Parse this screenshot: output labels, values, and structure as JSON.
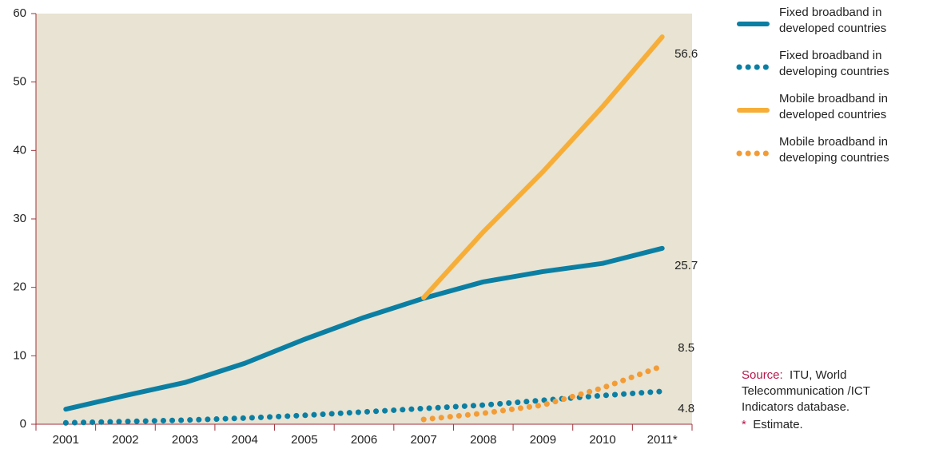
{
  "chart_data": {
    "type": "line",
    "categories": [
      "2001",
      "2002",
      "2003",
      "2004",
      "2005",
      "2006",
      "2007",
      "2008",
      "2009",
      "2010",
      "2011*"
    ],
    "series": [
      {
        "name": "Fixed broadband in developed countries",
        "color": "#0b7fa3",
        "dash": "solid",
        "values": [
          2.2,
          4.2,
          6.1,
          8.9,
          12.4,
          15.6,
          18.4,
          20.8,
          22.3,
          23.5,
          25.7
        ]
      },
      {
        "name": "Fixed broadband in developing countries",
        "color": "#0b7fa3",
        "dash": "dotted",
        "values": [
          0.2,
          0.4,
          0.6,
          0.9,
          1.3,
          1.8,
          2.3,
          2.8,
          3.5,
          4.2,
          4.8
        ]
      },
      {
        "name": "Mobile broadband in developed countries",
        "color": "#f7ae38",
        "dash": "solid",
        "values": [
          null,
          null,
          null,
          null,
          null,
          null,
          18.5,
          28.1,
          36.9,
          46.4,
          56.6
        ]
      },
      {
        "name": "Mobile broadband in developing countries",
        "color": "#f39c36",
        "dash": "dotted",
        "values": [
          null,
          null,
          null,
          null,
          null,
          null,
          0.7,
          1.6,
          2.8,
          5.3,
          8.5
        ]
      }
    ],
    "ylim": [
      0,
      60
    ],
    "yticks": [
      0,
      10,
      20,
      30,
      40,
      50,
      60
    ],
    "data_labels": "last",
    "plot_background": "#e8e3d2",
    "source_label": "Source:",
    "source": "ITU, World Telecommunication /ICT Indicators database.",
    "note_marker": "*",
    "note": "Estimate."
  }
}
